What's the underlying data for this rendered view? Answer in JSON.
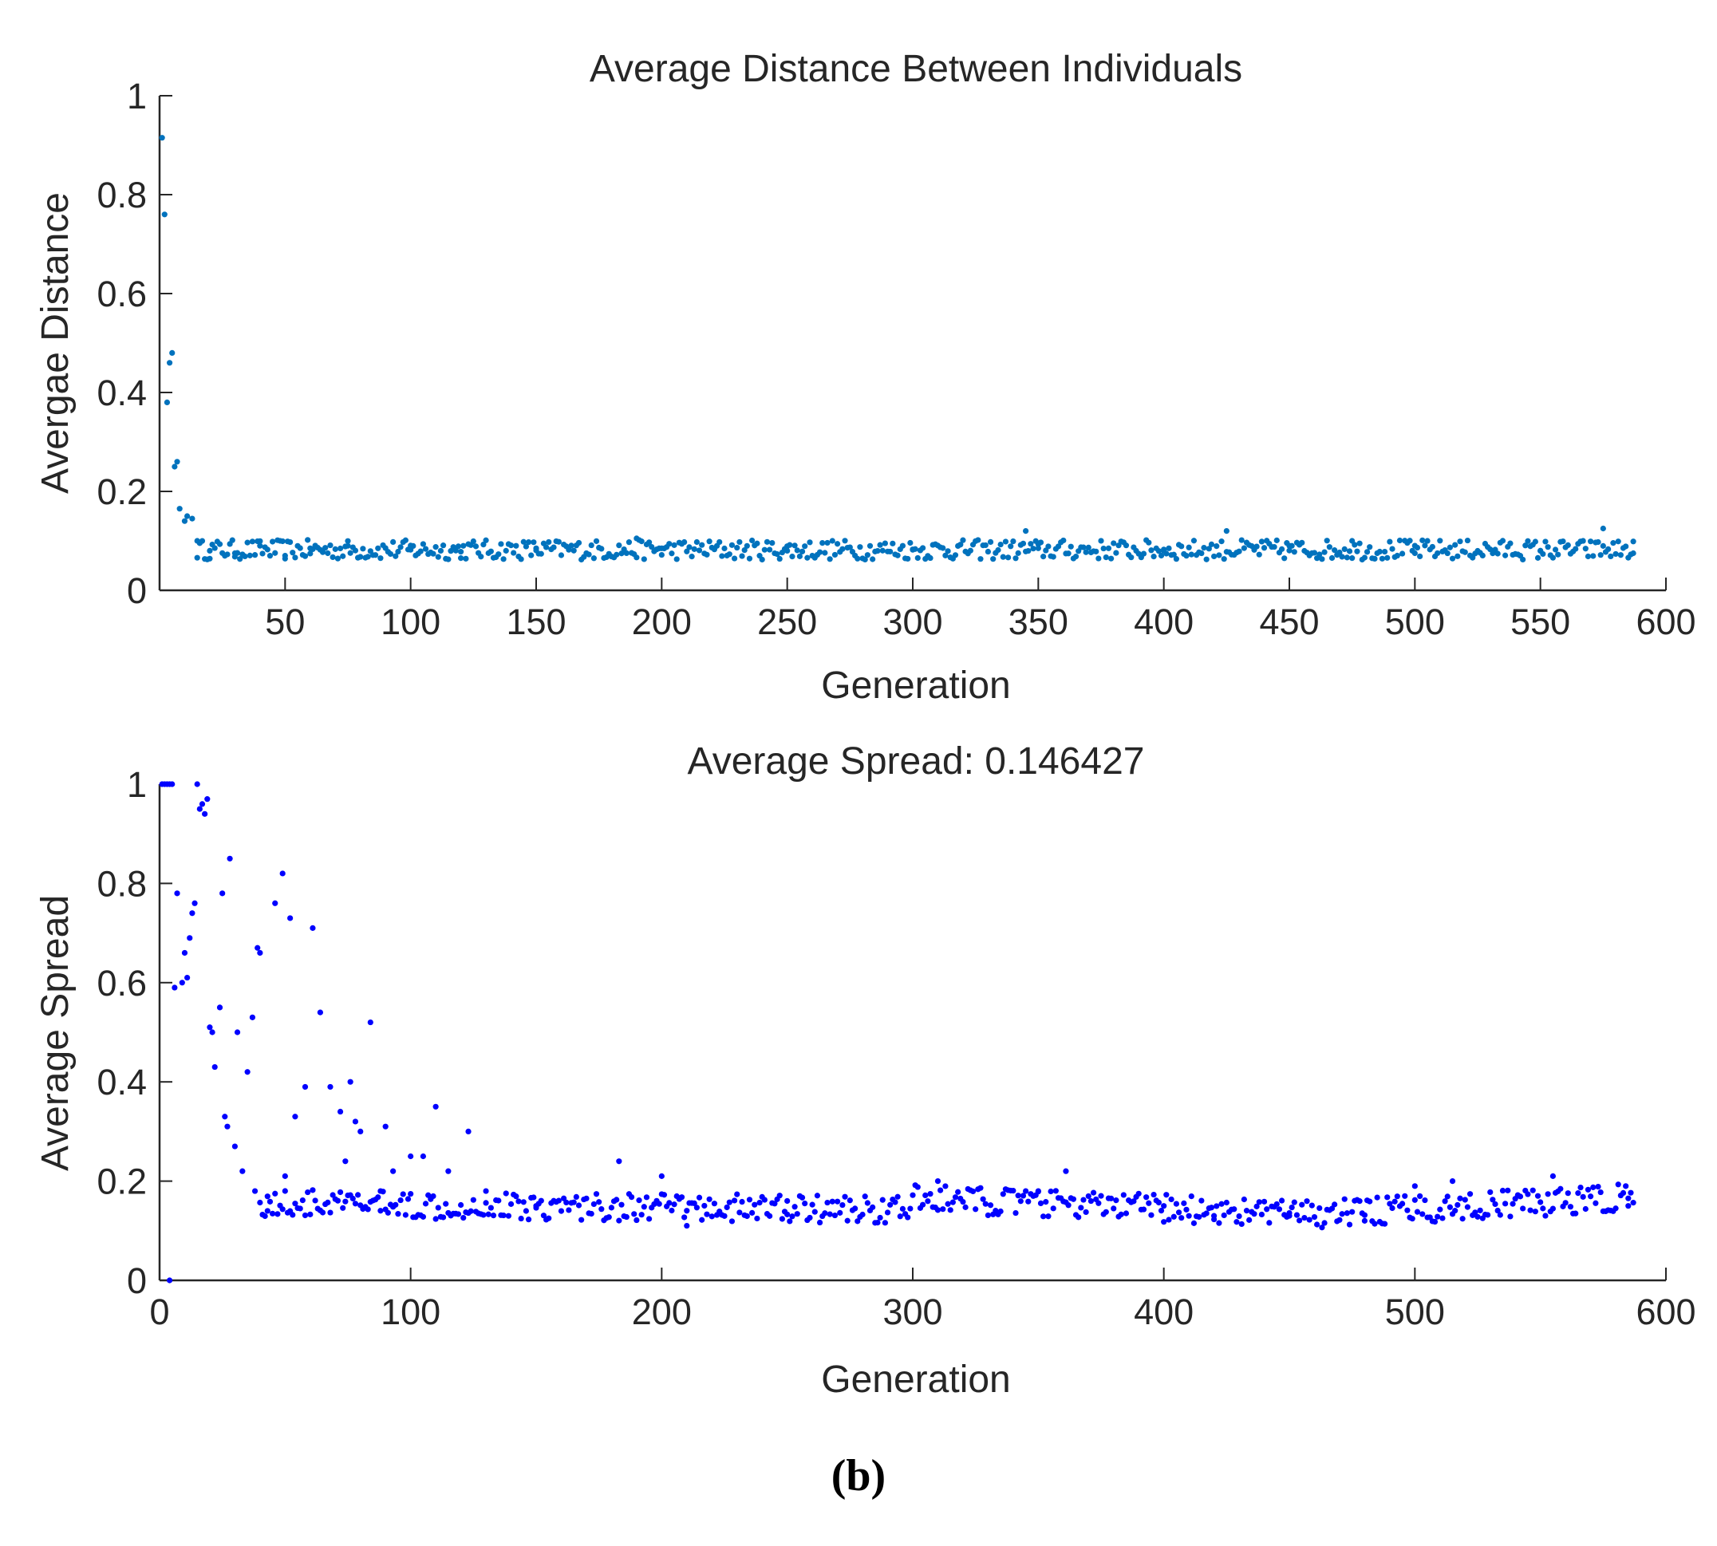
{
  "figure_label": "(b)",
  "chart_data": [
    {
      "type": "scatter",
      "title": "Average Distance Between Individuals",
      "xlabel": "Generation",
      "ylabel": "Avergae Distance",
      "xlim": [
        0,
        600
      ],
      "ylim": [
        0,
        1
      ],
      "xticks": [
        50,
        100,
        150,
        200,
        250,
        300,
        350,
        400,
        450,
        500,
        550,
        600
      ],
      "yticks": [
        0,
        0.2,
        0.4,
        0.6,
        0.8,
        1
      ],
      "grid": false,
      "marker_color": "#0072BD",
      "series": [
        {
          "name": "Average Distance",
          "points": [
            [
              1,
              0.915
            ],
            [
              2,
              0.76
            ],
            [
              3,
              0.38
            ],
            [
              4,
              0.46
            ],
            [
              5,
              0.48
            ],
            [
              6,
              0.25
            ],
            [
              7,
              0.26
            ],
            [
              8,
              0.165
            ],
            [
              10,
              0.14
            ],
            [
              11,
              0.15
            ],
            [
              13,
              0.145
            ],
            [
              15,
              0.1
            ],
            [
              20,
              0.08
            ],
            [
              30,
              0.075
            ],
            [
              40,
              0.09
            ],
            [
              50,
              0.07
            ],
            [
              60,
              0.085
            ],
            [
              75,
              0.09
            ],
            [
              100,
              0.082
            ],
            [
              120,
              0.078
            ],
            [
              150,
              0.085
            ],
            [
              190,
              0.105
            ],
            [
              200,
              0.085
            ],
            [
              250,
              0.08
            ],
            [
              300,
              0.082
            ],
            [
              345,
              0.12
            ],
            [
              350,
              0.085
            ],
            [
              400,
              0.08
            ],
            [
              425,
              0.12
            ],
            [
              450,
              0.09
            ],
            [
              475,
              0.1
            ],
            [
              500,
              0.075
            ],
            [
              550,
              0.08
            ],
            [
              575,
              0.125
            ],
            [
              587,
              0.075
            ]
          ],
          "noise_note": "dense points ~every generation fluctuating between 0.04 and 0.13 after generation 15"
        }
      ]
    },
    {
      "type": "scatter",
      "title": "Average Spread: 0.146427",
      "xlabel": "Generation",
      "ylabel": "Average Spread",
      "xlim": [
        0,
        600
      ],
      "ylim": [
        0,
        1
      ],
      "xticks": [
        0,
        100,
        200,
        300,
        400,
        500,
        600
      ],
      "yticks": [
        0,
        0.2,
        0.4,
        0.6,
        0.8,
        1
      ],
      "grid": false,
      "marker_color": "#0000FF",
      "series": [
        {
          "name": "Average Spread",
          "points": [
            [
              1,
              1.0
            ],
            [
              2,
              1.0
            ],
            [
              3,
              1.0
            ],
            [
              4,
              1.0
            ],
            [
              5,
              1.0
            ],
            [
              4,
              0.0
            ],
            [
              6,
              0.59
            ],
            [
              7,
              0.78
            ],
            [
              9,
              0.6
            ],
            [
              10,
              0.66
            ],
            [
              11,
              0.61
            ],
            [
              12,
              0.69
            ],
            [
              13,
              0.74
            ],
            [
              14,
              0.76
            ],
            [
              15,
              1.0
            ],
            [
              16,
              0.95
            ],
            [
              17,
              0.96
            ],
            [
              18,
              0.94
            ],
            [
              19,
              0.97
            ],
            [
              20,
              0.51
            ],
            [
              21,
              0.5
            ],
            [
              22,
              0.43
            ],
            [
              24,
              0.55
            ],
            [
              25,
              0.78
            ],
            [
              26,
              0.33
            ],
            [
              27,
              0.31
            ],
            [
              28,
              0.85
            ],
            [
              30,
              0.27
            ],
            [
              31,
              0.5
            ],
            [
              33,
              0.22
            ],
            [
              35,
              0.42
            ],
            [
              37,
              0.53
            ],
            [
              38,
              0.18
            ],
            [
              39,
              0.67
            ],
            [
              40,
              0.66
            ],
            [
              43,
              0.14
            ],
            [
              46,
              0.76
            ],
            [
              49,
              0.82
            ],
            [
              50,
              0.21
            ],
            [
              52,
              0.73
            ],
            [
              54,
              0.33
            ],
            [
              58,
              0.39
            ],
            [
              61,
              0.71
            ],
            [
              64,
              0.54
            ],
            [
              68,
              0.39
            ],
            [
              72,
              0.34
            ],
            [
              74,
              0.24
            ],
            [
              76,
              0.4
            ],
            [
              78,
              0.32
            ],
            [
              80,
              0.3
            ],
            [
              84,
              0.52
            ],
            [
              88,
              0.18
            ],
            [
              90,
              0.31
            ],
            [
              93,
              0.22
            ],
            [
              100,
              0.25
            ],
            [
              105,
              0.25
            ],
            [
              110,
              0.35
            ],
            [
              115,
              0.22
            ],
            [
              123,
              0.3
            ],
            [
              130,
              0.18
            ],
            [
              150,
              0.15
            ],
            [
              183,
              0.24
            ],
            [
              200,
              0.21
            ],
            [
              210,
              0.11
            ],
            [
              250,
              0.16
            ],
            [
              310,
              0.2
            ],
            [
              350,
              0.18
            ],
            [
              361,
              0.22
            ],
            [
              400,
              0.15
            ],
            [
              420,
              0.13
            ],
            [
              450,
              0.13
            ],
            [
              480,
              0.12
            ],
            [
              500,
              0.19
            ],
            [
              515,
              0.2
            ],
            [
              555,
              0.21
            ],
            [
              585,
              0.15
            ]
          ],
          "noise_note": "dense points ~every generation near 0.12–0.2 after generation 40"
        }
      ]
    }
  ]
}
